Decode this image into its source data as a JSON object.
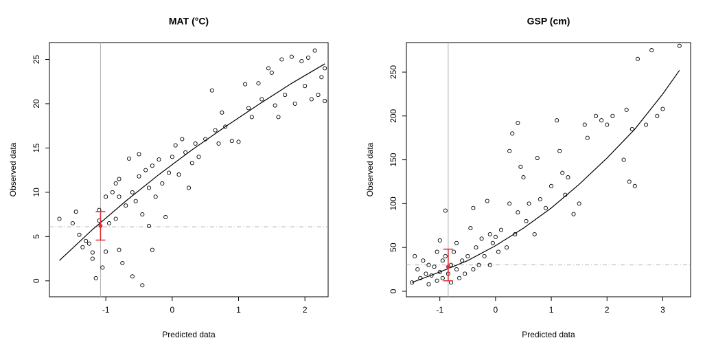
{
  "chart_data": [
    {
      "type": "scatter",
      "title": "MAT (°C)",
      "xlabel": "Predicted data",
      "ylabel": "Observed data",
      "xlim": [
        -1.85,
        2.35
      ],
      "ylim": [
        -1.8,
        26.9
      ],
      "xticks": [
        -1,
        0,
        1,
        2
      ],
      "yticks": [
        0,
        5,
        10,
        15,
        20,
        25
      ],
      "point_color": "#000000",
      "fit_color": "#000000",
      "ref_color": "#b0b0b0",
      "estimate_color": "#e0303a",
      "points": {
        "x": [
          -1.7,
          -1.5,
          -1.45,
          -1.4,
          -1.35,
          -1.3,
          -1.25,
          -1.2,
          -1.2,
          -1.15,
          -1.1,
          -1.1,
          -1.05,
          -1.0,
          -1.0,
          -0.95,
          -0.9,
          -0.85,
          -0.85,
          -0.8,
          -0.8,
          -0.8,
          -0.75,
          -0.7,
          -0.65,
          -0.6,
          -0.6,
          -0.55,
          -0.5,
          -0.5,
          -0.45,
          -0.45,
          -0.4,
          -0.35,
          -0.35,
          -0.3,
          -0.3,
          -0.25,
          -0.2,
          -0.15,
          -0.1,
          -0.05,
          0.0,
          0.05,
          0.1,
          0.15,
          0.2,
          0.25,
          0.3,
          0.35,
          0.4,
          0.5,
          0.6,
          0.65,
          0.7,
          0.75,
          0.8,
          0.9,
          1.0,
          1.1,
          1.15,
          1.2,
          1.3,
          1.35,
          1.45,
          1.5,
          1.55,
          1.6,
          1.65,
          1.7,
          1.8,
          1.85,
          1.95,
          2.0,
          2.05,
          2.1,
          2.15,
          2.2,
          2.25,
          2.3,
          2.3
        ],
        "y": [
          7.0,
          6.5,
          7.8,
          5.2,
          3.8,
          4.5,
          4.2,
          2.5,
          3.2,
          0.3,
          8.0,
          6.8,
          1.5,
          9.5,
          3.3,
          6.5,
          10.0,
          7.0,
          11.0,
          11.5,
          9.5,
          3.5,
          2.0,
          8.5,
          13.8,
          10.0,
          0.5,
          9.0,
          11.8,
          14.3,
          7.5,
          -0.5,
          12.5,
          10.5,
          6.2,
          13.0,
          3.5,
          9.5,
          13.7,
          11.0,
          7.2,
          12.2,
          14.0,
          15.3,
          12.0,
          16.0,
          14.5,
          10.5,
          13.3,
          15.5,
          14.0,
          16.0,
          21.5,
          17.0,
          15.5,
          19.0,
          17.4,
          15.8,
          15.7,
          22.2,
          19.5,
          18.5,
          22.3,
          20.5,
          24.0,
          23.5,
          19.8,
          18.5,
          25.0,
          21.0,
          25.3,
          20.0,
          24.8,
          22.0,
          25.2,
          20.5,
          26.0,
          21.0,
          23.0,
          20.3,
          24.0
        ]
      },
      "fit": {
        "x": [
          -1.7,
          -1.2,
          -0.7,
          -0.2,
          0.3,
          0.8,
          1.3,
          1.8,
          2.3
        ],
        "y": [
          2.3,
          5.8,
          9.0,
          12.0,
          14.8,
          17.4,
          19.9,
          22.3,
          24.5
        ]
      },
      "vline": -1.08,
      "hline": 6.1,
      "estimate": {
        "x": -1.08,
        "y": 6.2,
        "low": 4.6,
        "high": 7.8
      }
    },
    {
      "type": "scatter",
      "title": "GSP (cm)",
      "xlabel": "Predicted data",
      "ylabel": "Observed data",
      "xlim": [
        -1.6,
        3.5
      ],
      "ylim": [
        -6.3,
        283.7
      ],
      "xticks": [
        -1,
        0,
        1,
        2,
        3
      ],
      "yticks": [
        0,
        50,
        100,
        150,
        200,
        250
      ],
      "point_color": "#000000",
      "fit_color": "#000000",
      "ref_color": "#b0b0b0",
      "estimate_color": "#e0303a",
      "points": {
        "x": [
          -1.5,
          -1.45,
          -1.4,
          -1.35,
          -1.3,
          -1.25,
          -1.2,
          -1.2,
          -1.15,
          -1.1,
          -1.05,
          -1.05,
          -1.0,
          -1.0,
          -0.95,
          -0.95,
          -0.9,
          -0.9,
          -0.85,
          -0.8,
          -0.8,
          -0.75,
          -0.7,
          -0.7,
          -0.65,
          -0.6,
          -0.55,
          -0.5,
          -0.45,
          -0.4,
          -0.4,
          -0.35,
          -0.3,
          -0.25,
          -0.2,
          -0.15,
          -0.1,
          -0.1,
          -0.05,
          0.0,
          0.05,
          0.1,
          0.2,
          0.25,
          0.25,
          0.3,
          0.35,
          0.4,
          0.4,
          0.45,
          0.5,
          0.55,
          0.6,
          0.7,
          0.75,
          0.8,
          0.9,
          1.0,
          1.1,
          1.15,
          1.2,
          1.25,
          1.3,
          1.4,
          1.5,
          1.6,
          1.65,
          1.8,
          1.9,
          2.0,
          2.1,
          2.3,
          2.35,
          2.4,
          2.45,
          2.5,
          2.55,
          2.7,
          2.8,
          2.9,
          3.0,
          3.3
        ],
        "y": [
          10,
          40,
          25,
          15,
          35,
          20,
          30,
          8,
          18,
          28,
          45,
          12,
          58,
          22,
          35,
          15,
          92,
          40,
          20,
          30,
          10,
          45,
          25,
          55,
          15,
          35,
          20,
          40,
          72,
          95,
          25,
          50,
          30,
          60,
          40,
          103,
          65,
          30,
          55,
          62,
          45,
          70,
          50,
          100,
          160,
          180,
          65,
          90,
          192,
          142,
          130,
          80,
          100,
          65,
          152,
          105,
          95,
          120,
          195,
          160,
          135,
          110,
          130,
          88,
          100,
          190,
          175,
          200,
          195,
          190,
          200,
          150,
          207,
          125,
          185,
          120,
          265,
          190,
          275,
          200,
          208,
          280
        ]
      },
      "fit": {
        "x": [
          -1.5,
          -1.0,
          -0.5,
          0.0,
          0.5,
          1.0,
          1.5,
          2.0,
          2.5,
          3.0,
          3.3
        ],
        "y": [
          10,
          22,
          35,
          52,
          72,
          95,
          122,
          152,
          185,
          225,
          252
        ]
      },
      "vline": -0.85,
      "hline": 30,
      "estimate": {
        "x": -0.85,
        "y": 28,
        "low": 12,
        "high": 48
      }
    }
  ]
}
